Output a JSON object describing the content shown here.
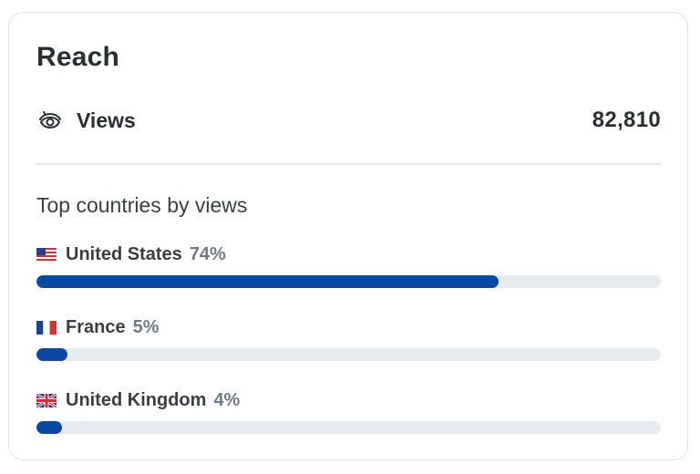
{
  "card": {
    "title": "Reach",
    "views": {
      "label": "Views",
      "value": "82,810",
      "icon": "eye-icon"
    },
    "top_countries": {
      "heading": "Top countries by views",
      "items": [
        {
          "flag": "us-flag-icon",
          "name": "United States",
          "percent_text": "74%",
          "percent": 74
        },
        {
          "flag": "fr-flag-icon",
          "name": "France",
          "percent_text": "5%",
          "percent": 5
        },
        {
          "flag": "gb-flag-icon",
          "name": "United Kingdom",
          "percent_text": "4%",
          "percent": 4
        }
      ]
    }
  },
  "colors": {
    "bar_fill": "#0a48a3",
    "bar_track": "#e6ebf0",
    "text_primary": "#2a2f33",
    "text_muted": "#717b84"
  }
}
